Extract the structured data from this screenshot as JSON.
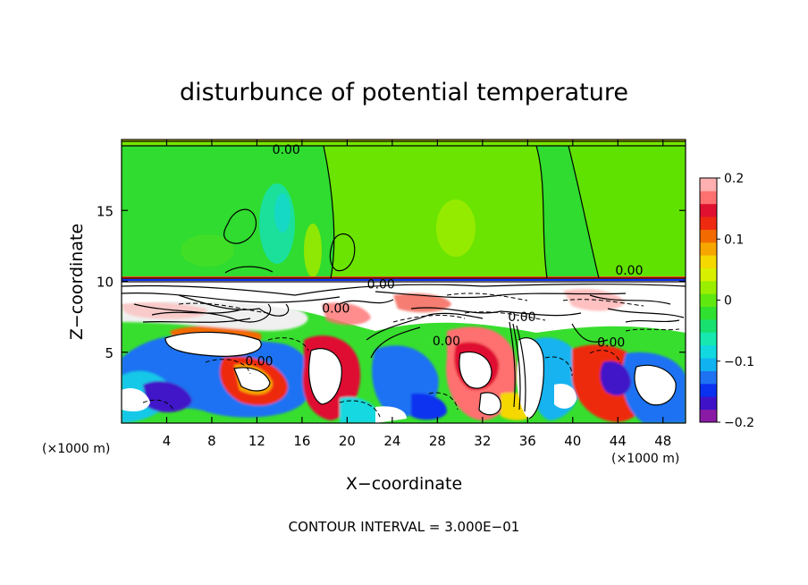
{
  "chart_data": {
    "type": "heatmap",
    "title": "disturbunce of potential temperature",
    "xlabel": "X−coordinate",
    "ylabel": "Z−coordinate",
    "x_unit_left": "(×1000 m)",
    "x_unit_right": "(×1000 m)",
    "xlim": [
      0,
      50
    ],
    "ylim": [
      0,
      20
    ],
    "x_ticks": [
      4,
      8,
      12,
      16,
      20,
      24,
      28,
      32,
      36,
      40,
      44,
      48
    ],
    "y_ticks": [
      5,
      10,
      15
    ],
    "colorbar": {
      "range": [
        -0.2,
        0.2
      ],
      "tick_values": [
        0.2,
        0.1,
        0,
        -0.1,
        -0.2
      ],
      "tick_labels": [
        "0.2",
        "0.1",
        "0",
        "−0.1",
        "−0.2"
      ],
      "colors": [
        "#8a1aa5",
        "#3f12c8",
        "#0a30f0",
        "#1d72f2",
        "#10b3f0",
        "#12d8e0",
        "#16e8b0",
        "#18e070",
        "#30e030",
        "#5fe810",
        "#9aee00",
        "#d8f000",
        "#f5d800",
        "#f7a600",
        "#f26a00",
        "#ee2a10",
        "#e01030",
        "#ff7070",
        "#ffb0b0"
      ]
    },
    "contour_labels": [
      {
        "text": "0.00",
        "x": 14.6,
        "z": 19.3
      },
      {
        "text": "0.00",
        "x": 45.0,
        "z": 10.8
      },
      {
        "text": "0.00",
        "x": 23.0,
        "z": 9.8
      },
      {
        "text": "0.00",
        "x": 19.0,
        "z": 8.1
      },
      {
        "text": "0.00",
        "x": 35.5,
        "z": 7.5
      },
      {
        "text": "0.00",
        "x": 28.8,
        "z": 5.8
      },
      {
        "text": "0.00",
        "x": 43.4,
        "z": 5.7
      },
      {
        "text": "0.00",
        "x": 12.2,
        "z": 4.4
      }
    ],
    "footer": "CONTOUR INTERVAL = 3.000E−01"
  }
}
